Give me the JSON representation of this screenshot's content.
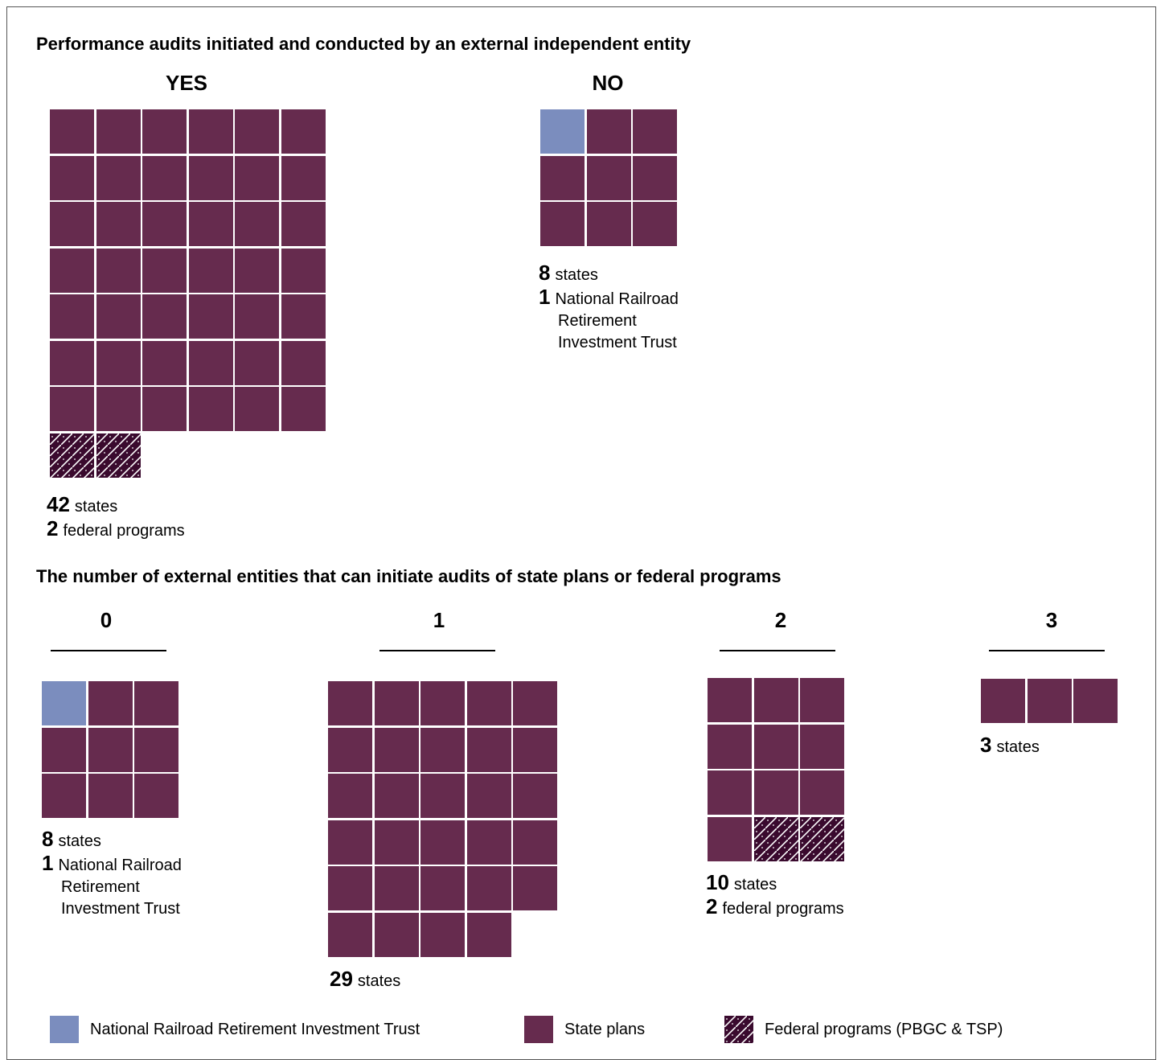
{
  "colors": {
    "state": "#662b4e",
    "nrrit": "#7b8dbe",
    "federal": "#3a0a2e"
  },
  "section1": {
    "title": "Performance audits initiated and conducted by an external independent entity"
  },
  "section2": {
    "title": "The number of external entities that can initiate audits of state plans or federal programs"
  },
  "chart_data": [
    {
      "type": "waffle",
      "title": "Performance audits initiated and conducted by an external independent entity",
      "categories": [
        "YES",
        "NO"
      ],
      "series": [
        {
          "name": "National Railroad Retirement Investment Trust",
          "values": [
            0,
            1
          ]
        },
        {
          "name": "State plans",
          "values": [
            42,
            8
          ]
        },
        {
          "name": "Federal programs (PBGC & TSP)",
          "values": [
            2,
            0
          ]
        }
      ]
    },
    {
      "type": "waffle",
      "title": "The number of external entities that can initiate audits of state plans or federal programs",
      "categories": [
        "0",
        "1",
        "2",
        "3"
      ],
      "series": [
        {
          "name": "National Railroad Retirement Investment Trust",
          "values": [
            1,
            0,
            0,
            0
          ]
        },
        {
          "name": "State plans",
          "values": [
            8,
            29,
            10,
            3
          ]
        },
        {
          "name": "Federal programs (PBGC & TSP)",
          "values": [
            0,
            0,
            2,
            0
          ]
        }
      ]
    }
  ],
  "groups": {
    "yes": {
      "heading": "YES",
      "lines": [
        {
          "num": "42",
          "label": "states"
        },
        {
          "num": "2",
          "label": "federal programs"
        }
      ]
    },
    "no": {
      "heading": "NO",
      "lines": [
        {
          "num": "8",
          "label": "states"
        },
        {
          "num": "1",
          "label": "National Railroad"
        }
      ],
      "extra": [
        "Retirement",
        "Investment Trust"
      ]
    },
    "e0": {
      "heading": "0",
      "lines": [
        {
          "num": "8",
          "label": "states"
        },
        {
          "num": "1",
          "label": "National Railroad"
        }
      ],
      "extra": [
        "Retirement",
        "Investment Trust"
      ]
    },
    "e1": {
      "heading": "1",
      "lines": [
        {
          "num": "29",
          "label": "states"
        }
      ]
    },
    "e2": {
      "heading": "2",
      "lines": [
        {
          "num": "10",
          "label": "states"
        },
        {
          "num": "2",
          "label": "federal programs"
        }
      ]
    },
    "e3": {
      "heading": "3",
      "lines": [
        {
          "num": "3",
          "label": "states"
        }
      ]
    }
  },
  "legend": [
    {
      "key": "nrrit",
      "label": "National Railroad Retirement Investment Trust"
    },
    {
      "key": "state",
      "label": "State plans"
    },
    {
      "key": "federal",
      "label": "Federal programs (PBGC & TSP)"
    }
  ]
}
